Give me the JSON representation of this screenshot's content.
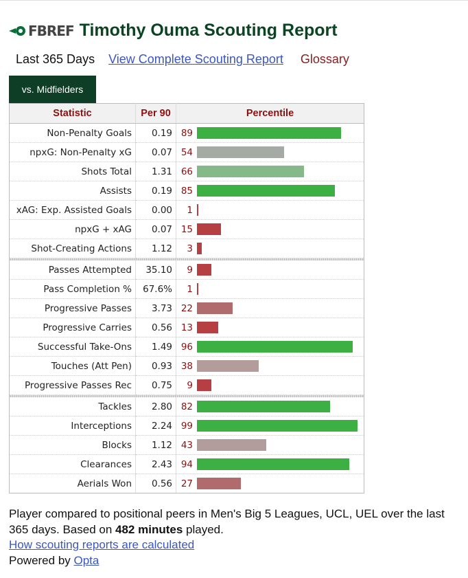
{
  "header": {
    "logo_text": "FBREF",
    "title": "Timothy Ouma Scouting Report"
  },
  "links": {
    "period": "Last 365 Days",
    "full_report": "View Complete Scouting Report",
    "glossary": "Glossary"
  },
  "tab": {
    "label": "vs. Midfielders"
  },
  "table": {
    "columns": [
      "Statistic",
      "Per 90",
      "Percentile"
    ],
    "groups": [
      [
        {
          "stat": "Non-Penalty Goals",
          "per90": "0.19",
          "percentile": 89
        },
        {
          "stat": "npxG: Non-Penalty xG",
          "per90": "0.07",
          "percentile": 54
        },
        {
          "stat": "Shots Total",
          "per90": "1.31",
          "percentile": 66
        },
        {
          "stat": "Assists",
          "per90": "0.19",
          "percentile": 85
        },
        {
          "stat": "xAG: Exp. Assisted Goals",
          "per90": "0.00",
          "percentile": 1
        },
        {
          "stat": "npxG + xAG",
          "per90": "0.07",
          "percentile": 15
        },
        {
          "stat": "Shot-Creating Actions",
          "per90": "1.12",
          "percentile": 3
        }
      ],
      [
        {
          "stat": "Passes Attempted",
          "per90": "35.10",
          "percentile": 9
        },
        {
          "stat": "Pass Completion %",
          "per90": "67.6%",
          "percentile": 1
        },
        {
          "stat": "Progressive Passes",
          "per90": "3.73",
          "percentile": 22
        },
        {
          "stat": "Progressive Carries",
          "per90": "0.56",
          "percentile": 13
        },
        {
          "stat": "Successful Take-Ons",
          "per90": "1.49",
          "percentile": 96
        },
        {
          "stat": "Touches (Att Pen)",
          "per90": "0.93",
          "percentile": 38
        },
        {
          "stat": "Progressive Passes Rec",
          "per90": "0.75",
          "percentile": 9
        }
      ],
      [
        {
          "stat": "Tackles",
          "per90": "2.80",
          "percentile": 82
        },
        {
          "stat": "Interceptions",
          "per90": "2.24",
          "percentile": 99
        },
        {
          "stat": "Blocks",
          "per90": "1.12",
          "percentile": 43
        },
        {
          "stat": "Clearances",
          "per90": "2.43",
          "percentile": 94
        },
        {
          "stat": "Aerials Won",
          "per90": "0.56",
          "percentile": 27
        }
      ]
    ]
  },
  "footer": {
    "note_pre": "Player compared to positional peers in Men's Big 5 Leagues, UCL, UEL over the last 365 days. Based on ",
    "minutes": "482 minutes",
    "note_post": " played.",
    "how_link": "How scouting reports are calculated",
    "powered_pre": "Powered by ",
    "powered_link": "Opta"
  },
  "colors": {
    "title": "#0b4422",
    "tab_bg": "#0e3e26",
    "link": "#3b56c3",
    "glossary": "#8a1c1c"
  },
  "icons": {
    "logo": "fbref-ball-icon"
  }
}
